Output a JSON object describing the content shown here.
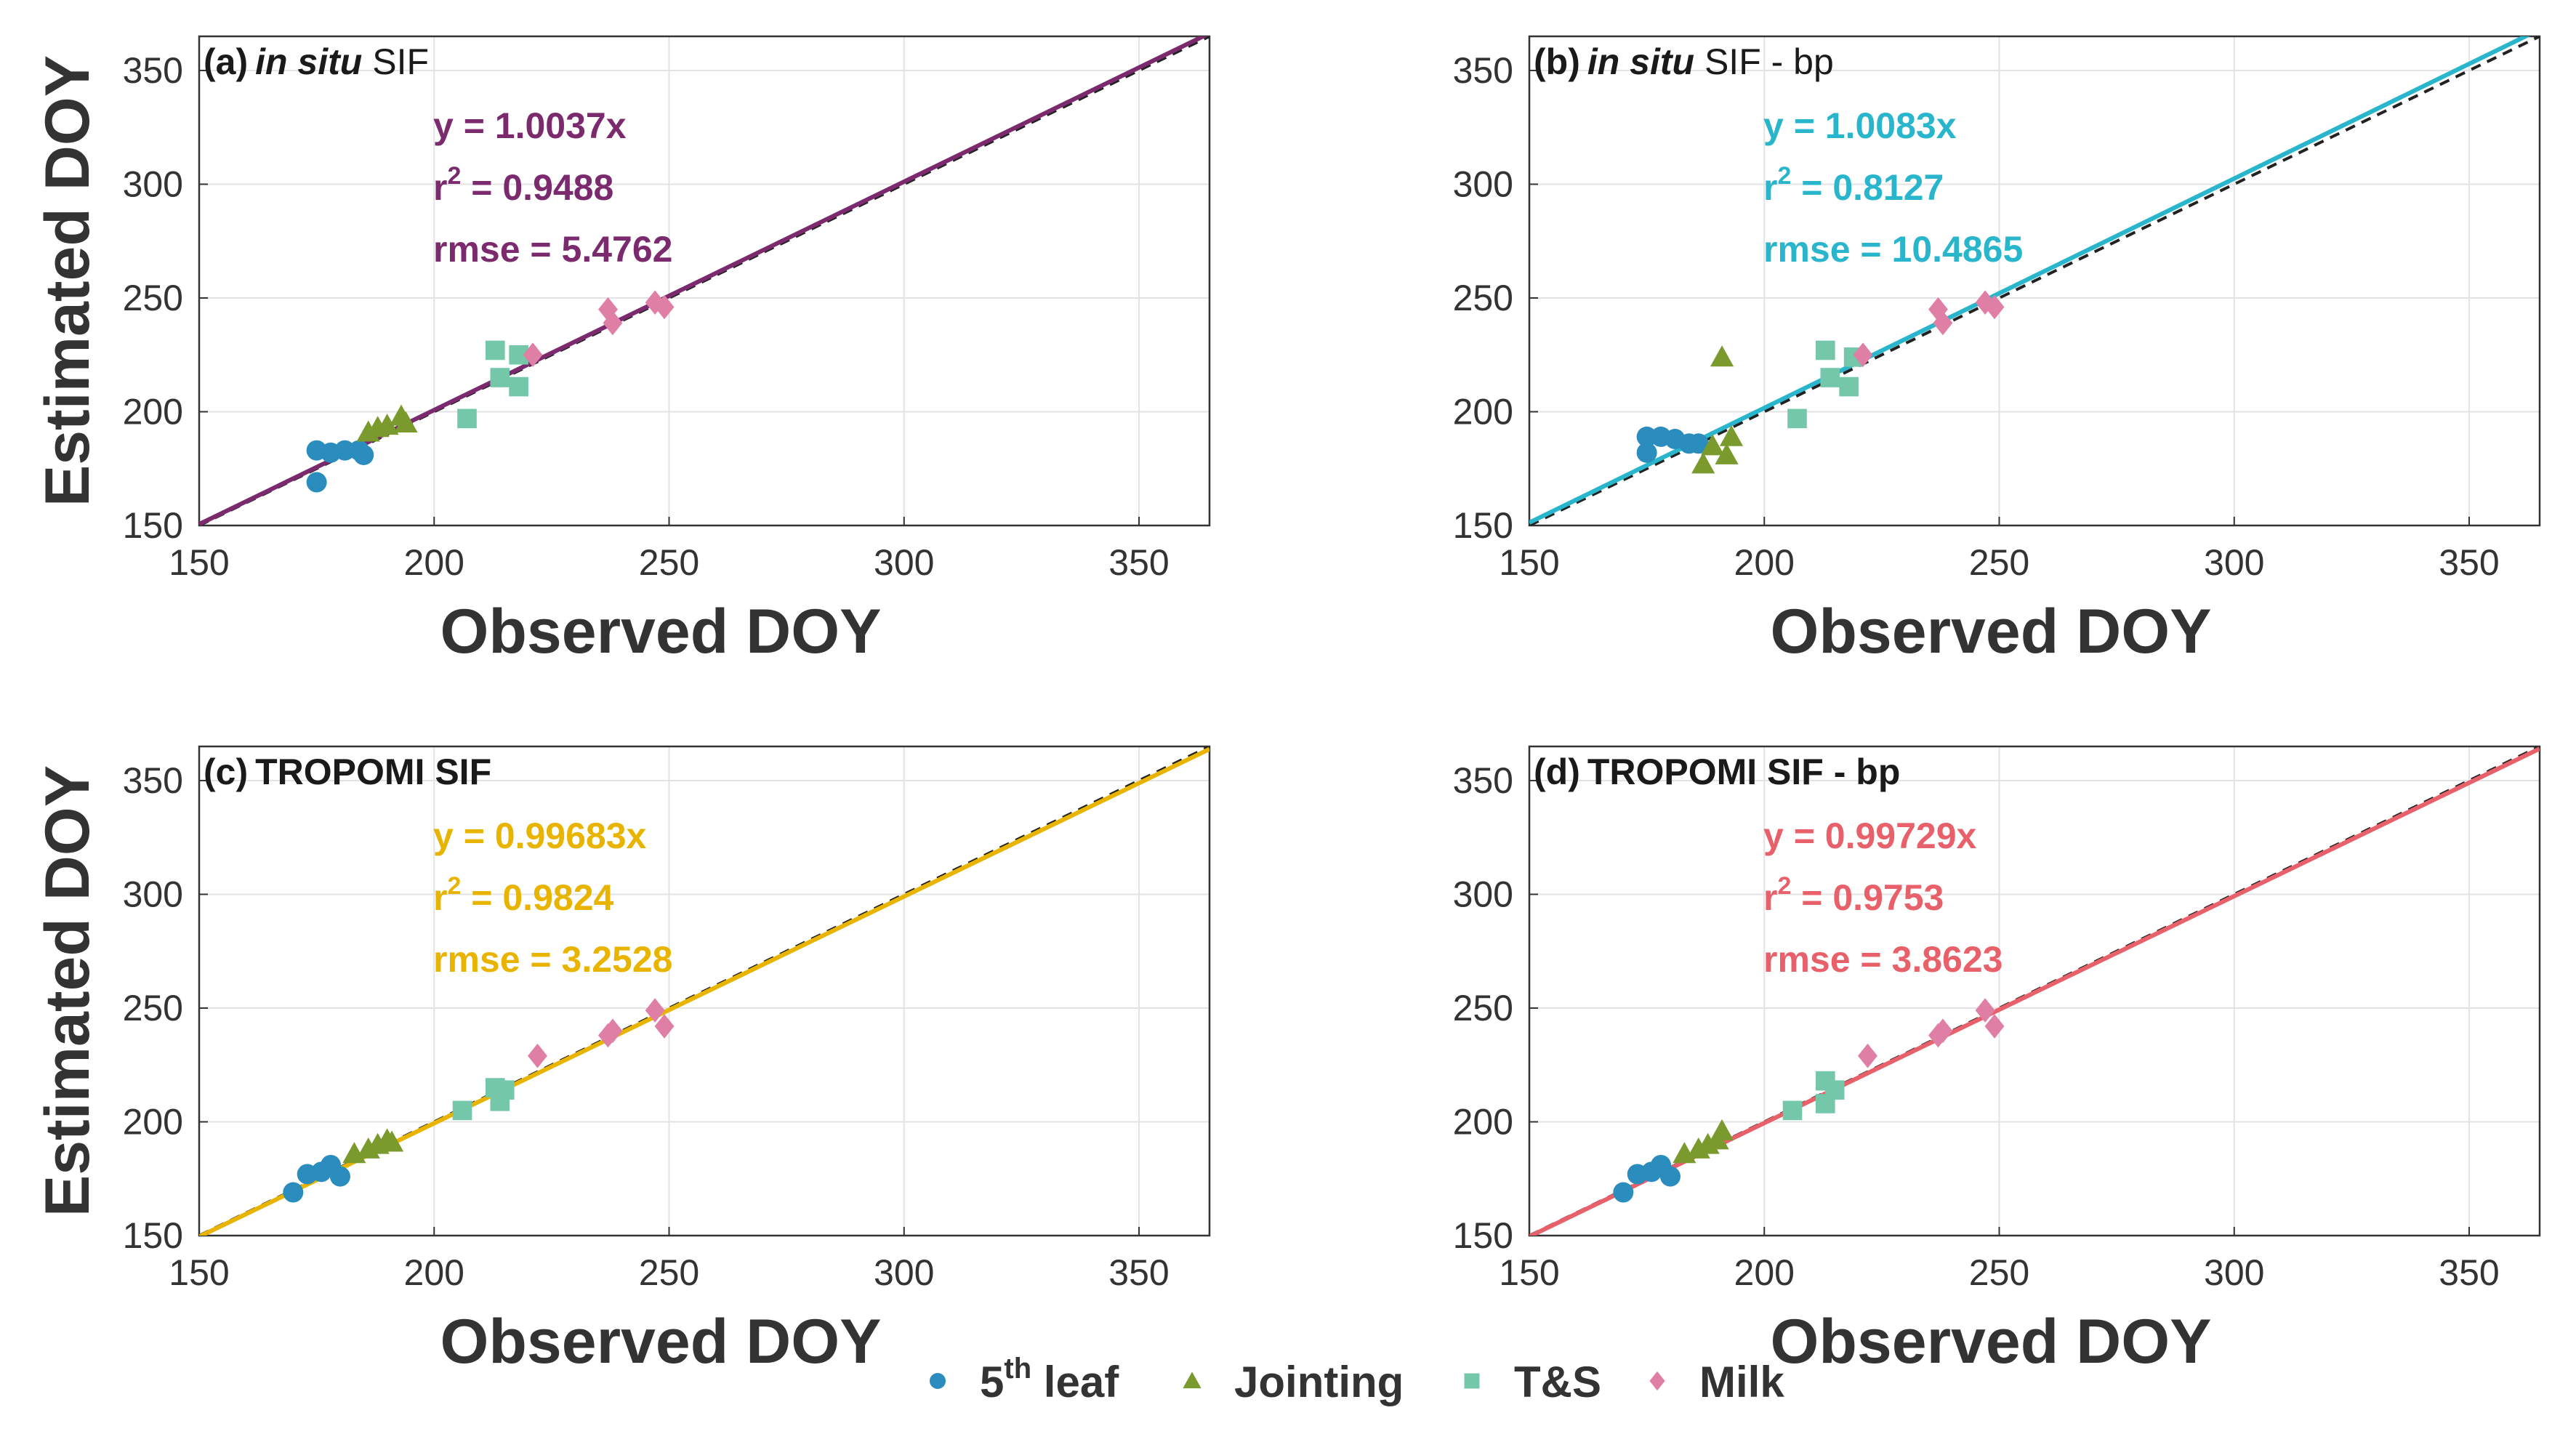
{
  "figure": {
    "xlabel": "Observed DOY",
    "ylabel": "Estimated DOY"
  },
  "legend": {
    "entries": [
      {
        "key": "leaf5",
        "label_main": "5",
        "label_sup": "th",
        "label_rest": " leaf",
        "color": "#2b8cbe",
        "marker": "circle-icon"
      },
      {
        "key": "jointing",
        "label_main": "Jointing",
        "color": "#7a9a2e",
        "marker": "triangle-icon"
      },
      {
        "key": "ts",
        "label_main": "T&S",
        "color": "#74c7a8",
        "marker": "square-icon"
      },
      {
        "key": "milk",
        "label_main": "Milk",
        "color": "#e07fa6",
        "marker": "diamond-icon"
      }
    ]
  },
  "chart_data": [
    {
      "type": "scatter",
      "panel_label": "(a)",
      "title_italic": "in situ",
      "title_rest": " SIF",
      "xlabel": "Observed DOY",
      "ylabel": "Estimated DOY",
      "xlim": [
        150,
        365
      ],
      "ylim": [
        150,
        365
      ],
      "xticks": [
        150,
        200,
        250,
        300,
        350
      ],
      "yticks": [
        150,
        200,
        250,
        300,
        350
      ],
      "grid": true,
      "fit": {
        "slope": 1.0037,
        "color": "#7b2a6e"
      },
      "stats": [
        "y = 1.0037x",
        "r",
        "2",
        " = 0.9488",
        "rmse = 5.4762"
      ],
      "series": [
        {
          "name": "5th leaf",
          "points": [
            [
              175,
              183
            ],
            [
              175,
              169
            ],
            [
              178,
              182
            ],
            [
              181,
              183
            ],
            [
              184,
              183
            ],
            [
              185,
              181
            ]
          ]
        },
        {
          "name": "Jointing",
          "points": [
            [
              186,
              191
            ],
            [
              188,
              193
            ],
            [
              190,
              194
            ],
            [
              193,
              198
            ],
            [
              194,
              195
            ]
          ]
        },
        {
          "name": "T&S",
          "points": [
            [
              207,
              197
            ],
            [
              213,
              227
            ],
            [
              214,
              215
            ],
            [
              218,
              211
            ],
            [
              218,
              225
            ]
          ]
        },
        {
          "name": "Milk",
          "points": [
            [
              221,
              225
            ],
            [
              237,
              245
            ],
            [
              238,
              239
            ],
            [
              247,
              248
            ],
            [
              249,
              246
            ]
          ]
        }
      ]
    },
    {
      "type": "scatter",
      "panel_label": "(b)",
      "title_italic": "in situ",
      "title_rest": " SIF - bp",
      "xlabel": "Observed DOY",
      "ylabel": "Estimated DOY",
      "xlim": [
        150,
        365
      ],
      "ylim": [
        150,
        365
      ],
      "xticks": [
        150,
        200,
        250,
        300,
        350
      ],
      "yticks": [
        150,
        200,
        250,
        300,
        350
      ],
      "grid": true,
      "fit": {
        "slope": 1.0083,
        "color": "#29b6cc"
      },
      "stats": [
        "y = 1.0083x",
        "r",
        "2",
        " = 0.8127",
        "rmse = 10.4865"
      ],
      "series": [
        {
          "name": "5th leaf",
          "points": [
            [
              175,
              189
            ],
            [
              175,
              182
            ],
            [
              178,
              189
            ],
            [
              181,
              188
            ],
            [
              184,
              186
            ],
            [
              186,
              186
            ]
          ]
        },
        {
          "name": "Jointing",
          "points": [
            [
              187,
              177
            ],
            [
              189,
              185
            ],
            [
              191,
              224
            ],
            [
              192,
              181
            ],
            [
              193,
              189
            ]
          ]
        },
        {
          "name": "T&S",
          "points": [
            [
              207,
              197
            ],
            [
              213,
              227
            ],
            [
              214,
              215
            ],
            [
              218,
              211
            ],
            [
              219,
              224
            ]
          ]
        },
        {
          "name": "Milk",
          "points": [
            [
              221,
              225
            ],
            [
              237,
              245
            ],
            [
              238,
              239
            ],
            [
              247,
              248
            ],
            [
              249,
              246
            ]
          ]
        }
      ]
    },
    {
      "type": "scatter",
      "panel_label": "(c)",
      "title_italic": "",
      "title_rest": "TROPOMI SIF",
      "xlabel": "Observed DOY",
      "ylabel": "Estimated DOY",
      "xlim": [
        150,
        365
      ],
      "ylim": [
        150,
        365
      ],
      "xticks": [
        150,
        200,
        250,
        300,
        350
      ],
      "yticks": [
        150,
        200,
        250,
        300,
        350
      ],
      "grid": true,
      "fit": {
        "slope": 0.99683,
        "color": "#e8b400"
      },
      "stats": [
        "y = 0.99683x",
        "r",
        "2",
        " = 0.9824",
        "rmse = 3.2528"
      ],
      "series": [
        {
          "name": "5th leaf",
          "points": [
            [
              170,
              169
            ],
            [
              173,
              177
            ],
            [
              176,
              178
            ],
            [
              178,
              181
            ],
            [
              180,
              176
            ]
          ]
        },
        {
          "name": "Jointing",
          "points": [
            [
              183,
              186
            ],
            [
              186,
              188
            ],
            [
              188,
              190
            ],
            [
              190,
              192
            ],
            [
              191,
              191
            ]
          ]
        },
        {
          "name": "T&S",
          "points": [
            [
              206,
              205
            ],
            [
              213,
              215
            ],
            [
              214,
              209
            ],
            [
              215,
              214
            ]
          ]
        },
        {
          "name": "Milk",
          "points": [
            [
              222,
              229
            ],
            [
              237,
              238
            ],
            [
              238,
              240
            ],
            [
              247,
              249
            ],
            [
              249,
              242
            ]
          ]
        }
      ]
    },
    {
      "type": "scatter",
      "panel_label": "(d)",
      "title_italic": "",
      "title_rest": "TROPOMI SIF - bp",
      "xlabel": "Observed DOY",
      "ylabel": "Estimated DOY",
      "xlim": [
        150,
        365
      ],
      "ylim": [
        150,
        365
      ],
      "xticks": [
        150,
        200,
        250,
        300,
        350
      ],
      "yticks": [
        150,
        200,
        250,
        300,
        350
      ],
      "grid": true,
      "fit": {
        "slope": 0.99729,
        "color": "#e8606a"
      },
      "stats": [
        "y = 0.99729x",
        "r",
        "2",
        " = 0.9753",
        "rmse = 3.8623"
      ],
      "series": [
        {
          "name": "5th leaf",
          "points": [
            [
              170,
              169
            ],
            [
              173,
              177
            ],
            [
              176,
              178
            ],
            [
              178,
              181
            ],
            [
              180,
              176
            ]
          ]
        },
        {
          "name": "Jointing",
          "points": [
            [
              183,
              186
            ],
            [
              186,
              188
            ],
            [
              188,
              190
            ],
            [
              190,
              192
            ],
            [
              191,
              196
            ]
          ]
        },
        {
          "name": "T&S",
          "points": [
            [
              206,
              205
            ],
            [
              213,
              218
            ],
            [
              213,
              208
            ],
            [
              215,
              214
            ]
          ]
        },
        {
          "name": "Milk",
          "points": [
            [
              222,
              229
            ],
            [
              237,
              238
            ],
            [
              238,
              240
            ],
            [
              247,
              249
            ],
            [
              249,
              242
            ]
          ]
        }
      ]
    }
  ]
}
